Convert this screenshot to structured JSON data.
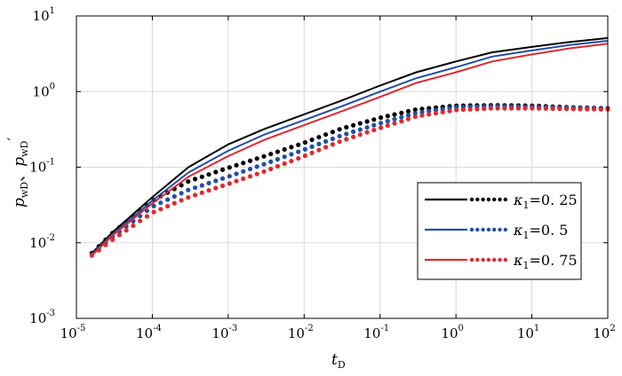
{
  "chart_data": {
    "type": "line",
    "x_scale": "log",
    "y_scale": "log",
    "xlim": [
      1e-05,
      100
    ],
    "ylim": [
      0.001,
      10
    ],
    "grid": true,
    "legend_position": "lower-right",
    "xlabel": "t",
    "xlabel_sub": "D",
    "ylabel": "p",
    "ylabel_sub1": "wD",
    "ylabel_sep": "、",
    "ylabel_sub2": "wD",
    "ylabel_prime": "′",
    "x_ticks": [
      {
        "base": "10",
        "exp": "-5",
        "value": 1e-05
      },
      {
        "base": "10",
        "exp": "-4",
        "value": 0.0001
      },
      {
        "base": "10",
        "exp": "-3",
        "value": 0.001
      },
      {
        "base": "10",
        "exp": "-2",
        "value": 0.01
      },
      {
        "base": "10",
        "exp": "-1",
        "value": 0.1
      },
      {
        "base": "10",
        "exp": "0",
        "value": 1
      },
      {
        "base": "10",
        "exp": "1",
        "value": 10
      },
      {
        "base": "10",
        "exp": "2",
        "value": 100
      }
    ],
    "y_ticks": [
      {
        "base": "10",
        "exp": "-3",
        "value": 0.001
      },
      {
        "base": "10",
        "exp": "-2",
        "value": 0.01
      },
      {
        "base": "10",
        "exp": "-1",
        "value": 0.1
      },
      {
        "base": "10",
        "exp": "0",
        "value": 1
      },
      {
        "base": "10",
        "exp": "1",
        "value": 10
      }
    ],
    "series": [
      {
        "name": "κ1=0. 25",
        "kappa_symbol": "κ",
        "kappa_sub": "1",
        "kappa_value": "=0. 25",
        "color": "#000000",
        "pressure": [
          [
            1.6e-05,
            0.0073
          ],
          [
            3e-05,
            0.0138
          ],
          [
            0.0001,
            0.04
          ],
          [
            0.0003,
            0.1
          ],
          [
            0.001,
            0.2
          ],
          [
            0.003,
            0.32
          ],
          [
            0.01,
            0.5
          ],
          [
            0.03,
            0.75
          ],
          [
            0.1,
            1.2
          ],
          [
            0.3,
            1.8
          ],
          [
            1,
            2.5
          ],
          [
            3,
            3.3
          ],
          [
            10,
            3.9
          ],
          [
            30,
            4.5
          ],
          [
            100,
            5.1
          ]
        ],
        "derivative": [
          [
            1.6e-05,
            0.0073
          ],
          [
            3e-05,
            0.0135
          ],
          [
            0.0001,
            0.036
          ],
          [
            0.0003,
            0.065
          ],
          [
            0.001,
            0.098
          ],
          [
            0.003,
            0.14
          ],
          [
            0.01,
            0.21
          ],
          [
            0.03,
            0.32
          ],
          [
            0.1,
            0.45
          ],
          [
            0.3,
            0.58
          ],
          [
            1,
            0.65
          ],
          [
            3,
            0.66
          ],
          [
            10,
            0.65
          ],
          [
            30,
            0.62
          ],
          [
            100,
            0.6
          ]
        ]
      },
      {
        "name": "κ1=0. 5",
        "kappa_symbol": "κ",
        "kappa_sub": "1",
        "kappa_value": "=0. 5",
        "color": "#1f4fa8",
        "pressure": [
          [
            1.6e-05,
            0.007
          ],
          [
            3e-05,
            0.013
          ],
          [
            0.0001,
            0.036
          ],
          [
            0.0003,
            0.085
          ],
          [
            0.001,
            0.165
          ],
          [
            0.003,
            0.27
          ],
          [
            0.01,
            0.42
          ],
          [
            0.03,
            0.63
          ],
          [
            0.1,
            1.0
          ],
          [
            0.3,
            1.5
          ],
          [
            1,
            2.1
          ],
          [
            3,
            2.9
          ],
          [
            10,
            3.5
          ],
          [
            30,
            4.1
          ],
          [
            100,
            4.7
          ]
        ],
        "derivative": [
          [
            1.6e-05,
            0.007
          ],
          [
            3e-05,
            0.012
          ],
          [
            0.0001,
            0.03
          ],
          [
            0.0003,
            0.05
          ],
          [
            0.001,
            0.075
          ],
          [
            0.003,
            0.11
          ],
          [
            0.01,
            0.17
          ],
          [
            0.03,
            0.26
          ],
          [
            0.1,
            0.38
          ],
          [
            0.3,
            0.52
          ],
          [
            1,
            0.62
          ],
          [
            3,
            0.64
          ],
          [
            10,
            0.63
          ],
          [
            30,
            0.61
          ],
          [
            100,
            0.59
          ]
        ]
      },
      {
        "name": "κ1=0. 75",
        "kappa_symbol": "κ",
        "kappa_sub": "1",
        "kappa_value": "=0. 75",
        "color": "#e0282e",
        "pressure": [
          [
            1.6e-05,
            0.0068
          ],
          [
            3e-05,
            0.0125
          ],
          [
            0.0001,
            0.033
          ],
          [
            0.0003,
            0.075
          ],
          [
            0.001,
            0.14
          ],
          [
            0.003,
            0.23
          ],
          [
            0.01,
            0.36
          ],
          [
            0.03,
            0.54
          ],
          [
            0.1,
            0.85
          ],
          [
            0.3,
            1.3
          ],
          [
            1,
            1.8
          ],
          [
            3,
            2.5
          ],
          [
            10,
            3.1
          ],
          [
            30,
            3.7
          ],
          [
            100,
            4.3
          ]
        ],
        "derivative": [
          [
            1.6e-05,
            0.0068
          ],
          [
            3e-05,
            0.011
          ],
          [
            0.0001,
            0.025
          ],
          [
            0.0003,
            0.04
          ],
          [
            0.001,
            0.06
          ],
          [
            0.003,
            0.088
          ],
          [
            0.01,
            0.14
          ],
          [
            0.03,
            0.22
          ],
          [
            0.1,
            0.33
          ],
          [
            0.3,
            0.47
          ],
          [
            1,
            0.57
          ],
          [
            3,
            0.6
          ],
          [
            10,
            0.6
          ],
          [
            30,
            0.59
          ],
          [
            100,
            0.58
          ]
        ]
      }
    ]
  }
}
